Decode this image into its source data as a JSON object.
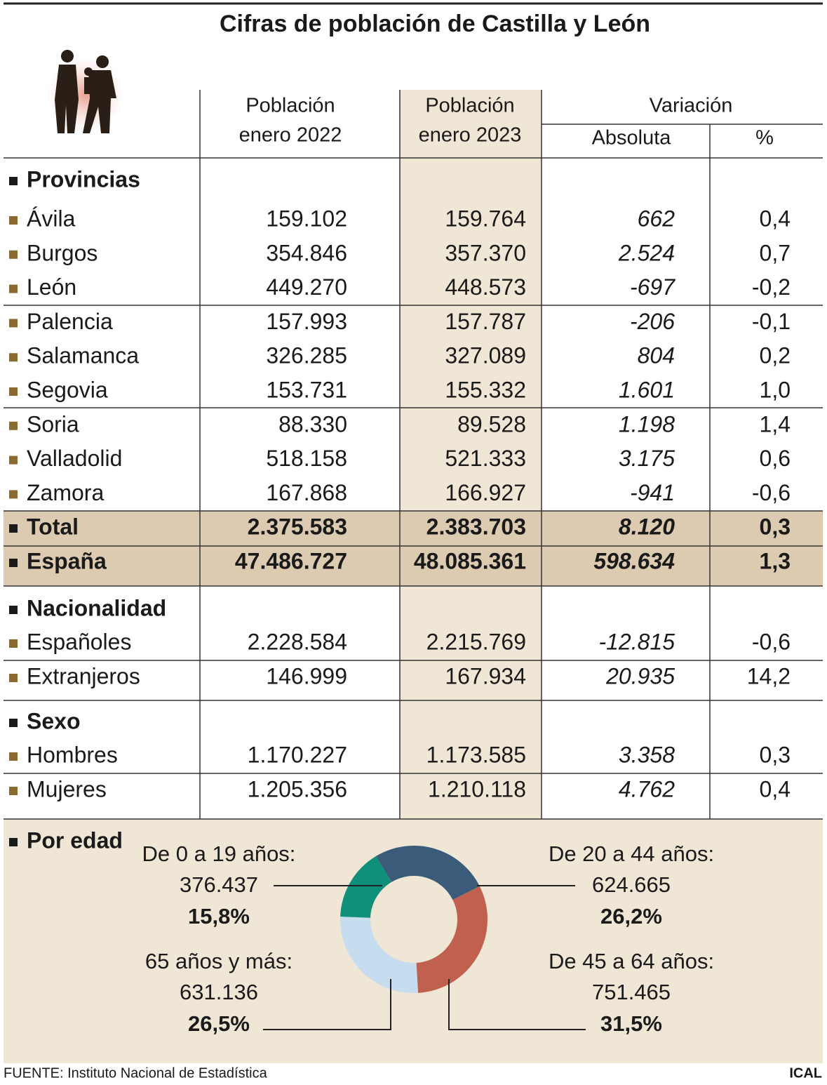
{
  "title": "Cifras de población de Castilla y León",
  "columns": {
    "pop2022": [
      "Población",
      "enero 2022"
    ],
    "pop2023": [
      "Población",
      "enero 2023"
    ],
    "variation": "Variación",
    "absolute": "Absoluta",
    "percent": "%"
  },
  "provinces": {
    "title": "Provincias",
    "rows": [
      [
        "Ávila",
        "159.102",
        "159.764",
        "662",
        "0,4"
      ],
      [
        "Burgos",
        "354.846",
        "357.370",
        "2.524",
        "0,7"
      ],
      [
        "León",
        "449.270",
        "448.573",
        "-697",
        "-0,2"
      ],
      [
        "Palencia",
        "157.993",
        "157.787",
        "-206",
        "-0,1"
      ],
      [
        "Salamanca",
        "326.285",
        "327.089",
        "804",
        "0,2"
      ],
      [
        "Segovia",
        "153.731",
        "155.332",
        "1.601",
        "1,0"
      ],
      [
        "Soria",
        "88.330",
        "89.528",
        "1.198",
        "1,4"
      ],
      [
        "Valladolid",
        "518.158",
        "521.333",
        "3.175",
        "0,6"
      ],
      [
        "Zamora",
        "167.868",
        "166.927",
        "-941",
        "-0,6"
      ]
    ]
  },
  "totals": [
    [
      "Total",
      "2.375.583",
      "2.383.703",
      "8.120",
      "0,3"
    ],
    [
      "España",
      "47.486.727",
      "48.085.361",
      "598.634",
      "1,3"
    ]
  ],
  "nationality": {
    "title": "Nacionalidad",
    "rows": [
      [
        "Españoles",
        "2.228.584",
        "2.215.769",
        "-12.815",
        "-0,6"
      ],
      [
        "Extranjeros",
        "146.999",
        "167.934",
        "20.935",
        "14,2"
      ]
    ]
  },
  "sex": {
    "title": "Sexo",
    "rows": [
      [
        "Hombres",
        "1.170.227",
        "1.173.585",
        "3.358",
        "0,3"
      ],
      [
        "Mujeres",
        "1.205.356",
        "1.210.118",
        "4.762",
        "0,4"
      ]
    ]
  },
  "age": {
    "title": "Por edad",
    "segments": [
      {
        "label": "De 20 a 44 años:",
        "value": "624.665",
        "percent": 26.2,
        "percent_label": "26,2%",
        "color": "#3a5b7a"
      },
      {
        "label": "De 45 a 64 años:",
        "value": "751.465",
        "percent": 31.5,
        "percent_label": "31,5%",
        "color": "#c0604f"
      },
      {
        "label": "65 años y más:",
        "value": "631.136",
        "percent": 26.5,
        "percent_label": "26,5%",
        "color": "#c6dcef"
      },
      {
        "label": "De 0 a 19 años:",
        "value": "376.437",
        "percent": 15.8,
        "percent_label": "15,8%",
        "color": "#10907a"
      }
    ]
  },
  "source": "FUENTE: Instituto Nacional de Estadística",
  "credit": "ICAL"
}
